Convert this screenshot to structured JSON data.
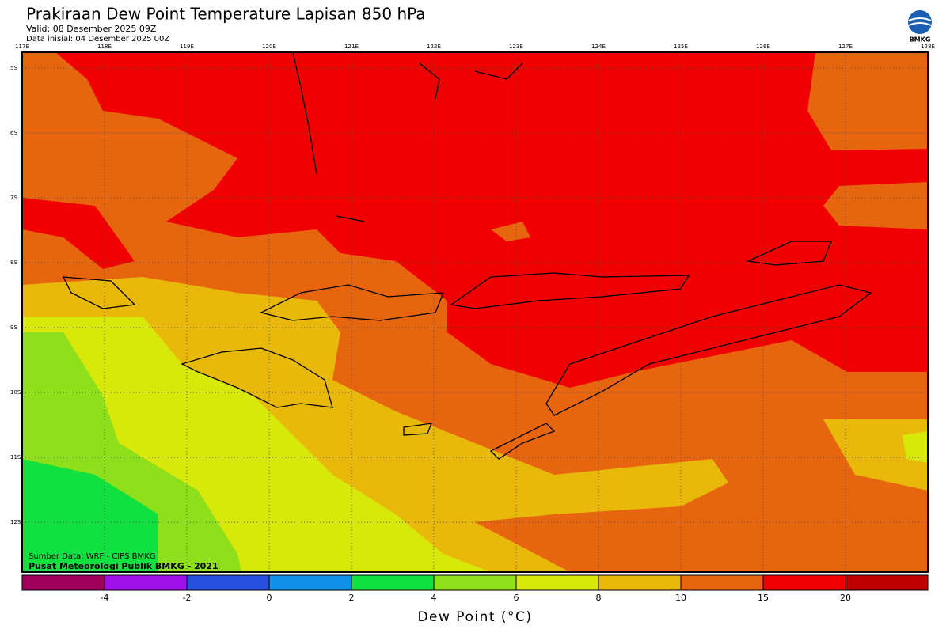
{
  "header": {
    "title": "Prakiraan Dew Point Temperature Lapisan 850 hPa",
    "valid": "Valid: 08 Desember 2025 09Z",
    "init": "Data inisial: 04 Desember 2025 00Z",
    "logo": "BMKG"
  },
  "map": {
    "lon_labels": [
      "117E",
      "118E",
      "119E",
      "120E",
      "121E",
      "122E",
      "123E",
      "124E",
      "125E",
      "126E",
      "127E",
      "128E"
    ],
    "lat_labels": [
      "5S",
      "6S",
      "7S",
      "8S",
      "9S",
      "10S",
      "11S",
      "12S"
    ],
    "source": "Sumber Data: WRF - CIPS BMKG",
    "credit": "Pusat Meteorologi Publik BMKG - 2021"
  },
  "colorbar": {
    "title": "Dew Point (°C)",
    "ticks": [
      -4,
      -2,
      0,
      2,
      4,
      6,
      8,
      10,
      15,
      20
    ],
    "colors": [
      "#a0005a",
      "#a010e8",
      "#2850e0",
      "#1090e8",
      "#10e040",
      "#8ee01a",
      "#d8e80a",
      "#e8b80a",
      "#e8650f",
      "#f00000",
      "#c00000"
    ]
  }
}
